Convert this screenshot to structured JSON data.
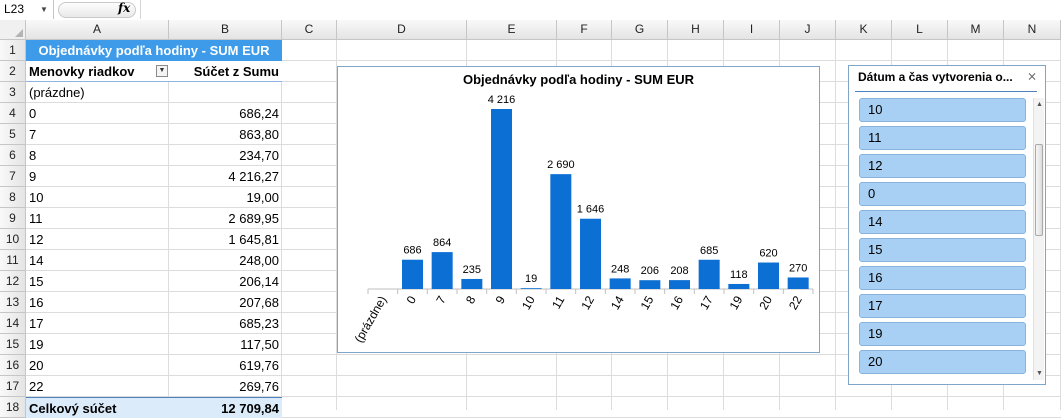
{
  "formula_bar": {
    "name_box": "L23",
    "fx_label": "fx",
    "formula": ""
  },
  "columns": [
    "A",
    "B",
    "C",
    "D",
    "E",
    "F",
    "G",
    "H",
    "I",
    "J",
    "K",
    "L",
    "M",
    "N"
  ],
  "rows": [
    "1",
    "2",
    "3",
    "4",
    "5",
    "6",
    "7",
    "8",
    "9",
    "10",
    "11",
    "12",
    "13",
    "14",
    "15",
    "16",
    "17",
    "18"
  ],
  "pivot": {
    "title": "Objednávky podľa hodiny - SUM EUR",
    "row_label_header": "Menovky riadkov",
    "value_header": "Súčet z Sumu",
    "items": [
      {
        "label": "(prázdne)",
        "value": ""
      },
      {
        "label": "0",
        "value": "686,24"
      },
      {
        "label": "7",
        "value": "863,80"
      },
      {
        "label": "8",
        "value": "234,70"
      },
      {
        "label": "9",
        "value": "4 216,27"
      },
      {
        "label": "10",
        "value": "19,00"
      },
      {
        "label": "11",
        "value": "2 689,95"
      },
      {
        "label": "12",
        "value": "1 645,81"
      },
      {
        "label": "14",
        "value": "248,00"
      },
      {
        "label": "15",
        "value": "206,14"
      },
      {
        "label": "16",
        "value": "207,68"
      },
      {
        "label": "17",
        "value": "685,23"
      },
      {
        "label": "19",
        "value": "117,50"
      },
      {
        "label": "20",
        "value": "619,76"
      },
      {
        "label": "22",
        "value": "269,76"
      }
    ],
    "total_label": "Celkový súčet",
    "total_value": "12 709,84"
  },
  "chart_data": {
    "type": "bar",
    "title": "Objednávky podľa hodiny - SUM EUR",
    "categories": [
      "(prázdne)",
      "0",
      "7",
      "8",
      "9",
      "10",
      "11",
      "12",
      "14",
      "15",
      "16",
      "17",
      "19",
      "20",
      "22"
    ],
    "values": [
      0,
      686,
      864,
      235,
      4216,
      19,
      2690,
      1646,
      248,
      206,
      208,
      685,
      118,
      620,
      270
    ],
    "data_labels": [
      "",
      "686",
      "864",
      "235",
      "4 216",
      "19",
      "2 690",
      "1 646",
      "248",
      "206",
      "208",
      "685",
      "118",
      "620",
      "270"
    ],
    "ylim": [
      0,
      4216
    ],
    "grid": false,
    "legend": "none",
    "bar_color": "#0b6fd3"
  },
  "slicer": {
    "title": "Dátum a čas vytvorenia o...",
    "clear_icon": "clear-filter-icon",
    "items": [
      "10",
      "11",
      "12",
      "0",
      "14",
      "15",
      "16",
      "17",
      "19",
      "20"
    ]
  }
}
